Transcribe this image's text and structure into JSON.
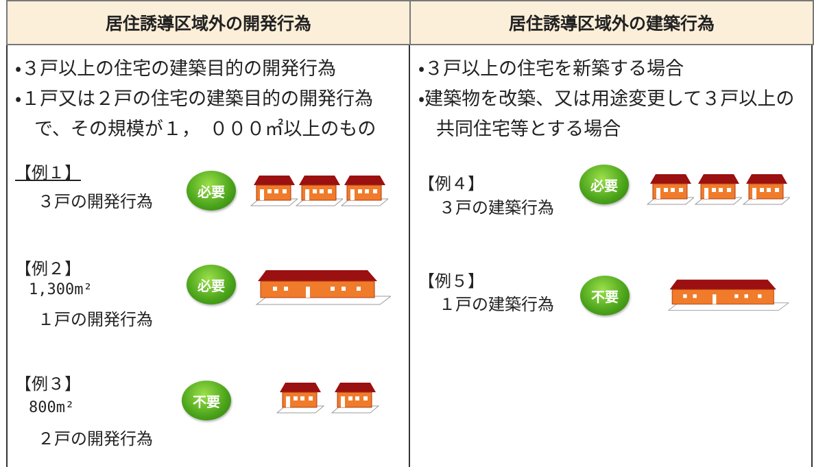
{
  "columns": [
    {
      "header": "居住誘導区域外の開発行為",
      "bullets": [
        "・３戸以上の住宅の建築目的の開発行為",
        "・１戸又は２戸の住宅の建築目的の開発行為",
        "で、その規模が１，　０００㎡以上のもの"
      ],
      "examples": [
        {
          "label": "【例１】",
          "description": "３戸の開発行為",
          "badge": "必要"
        },
        {
          "label": "【例２】",
          "size": "1,300m²",
          "description": "１戸の開発行為",
          "badge": "必要"
        },
        {
          "label": "【例３】",
          "size": "800m²",
          "description": "２戸の開発行為",
          "badge": "不要"
        }
      ]
    },
    {
      "header": "居住誘導区域外の建築行為",
      "bullets": [
        "・３戸以上の住宅を新築する場合",
        "・建築物を改築、又は用途変更して３戸以上の",
        "共同住宅等とする場合"
      ],
      "examples": [
        {
          "label": "【例４】",
          "description": "３戸の建築行為",
          "badge": "必要"
        },
        {
          "label": "【例５】",
          "description": "１戸の建築行為",
          "badge": "不要"
        }
      ]
    }
  ]
}
